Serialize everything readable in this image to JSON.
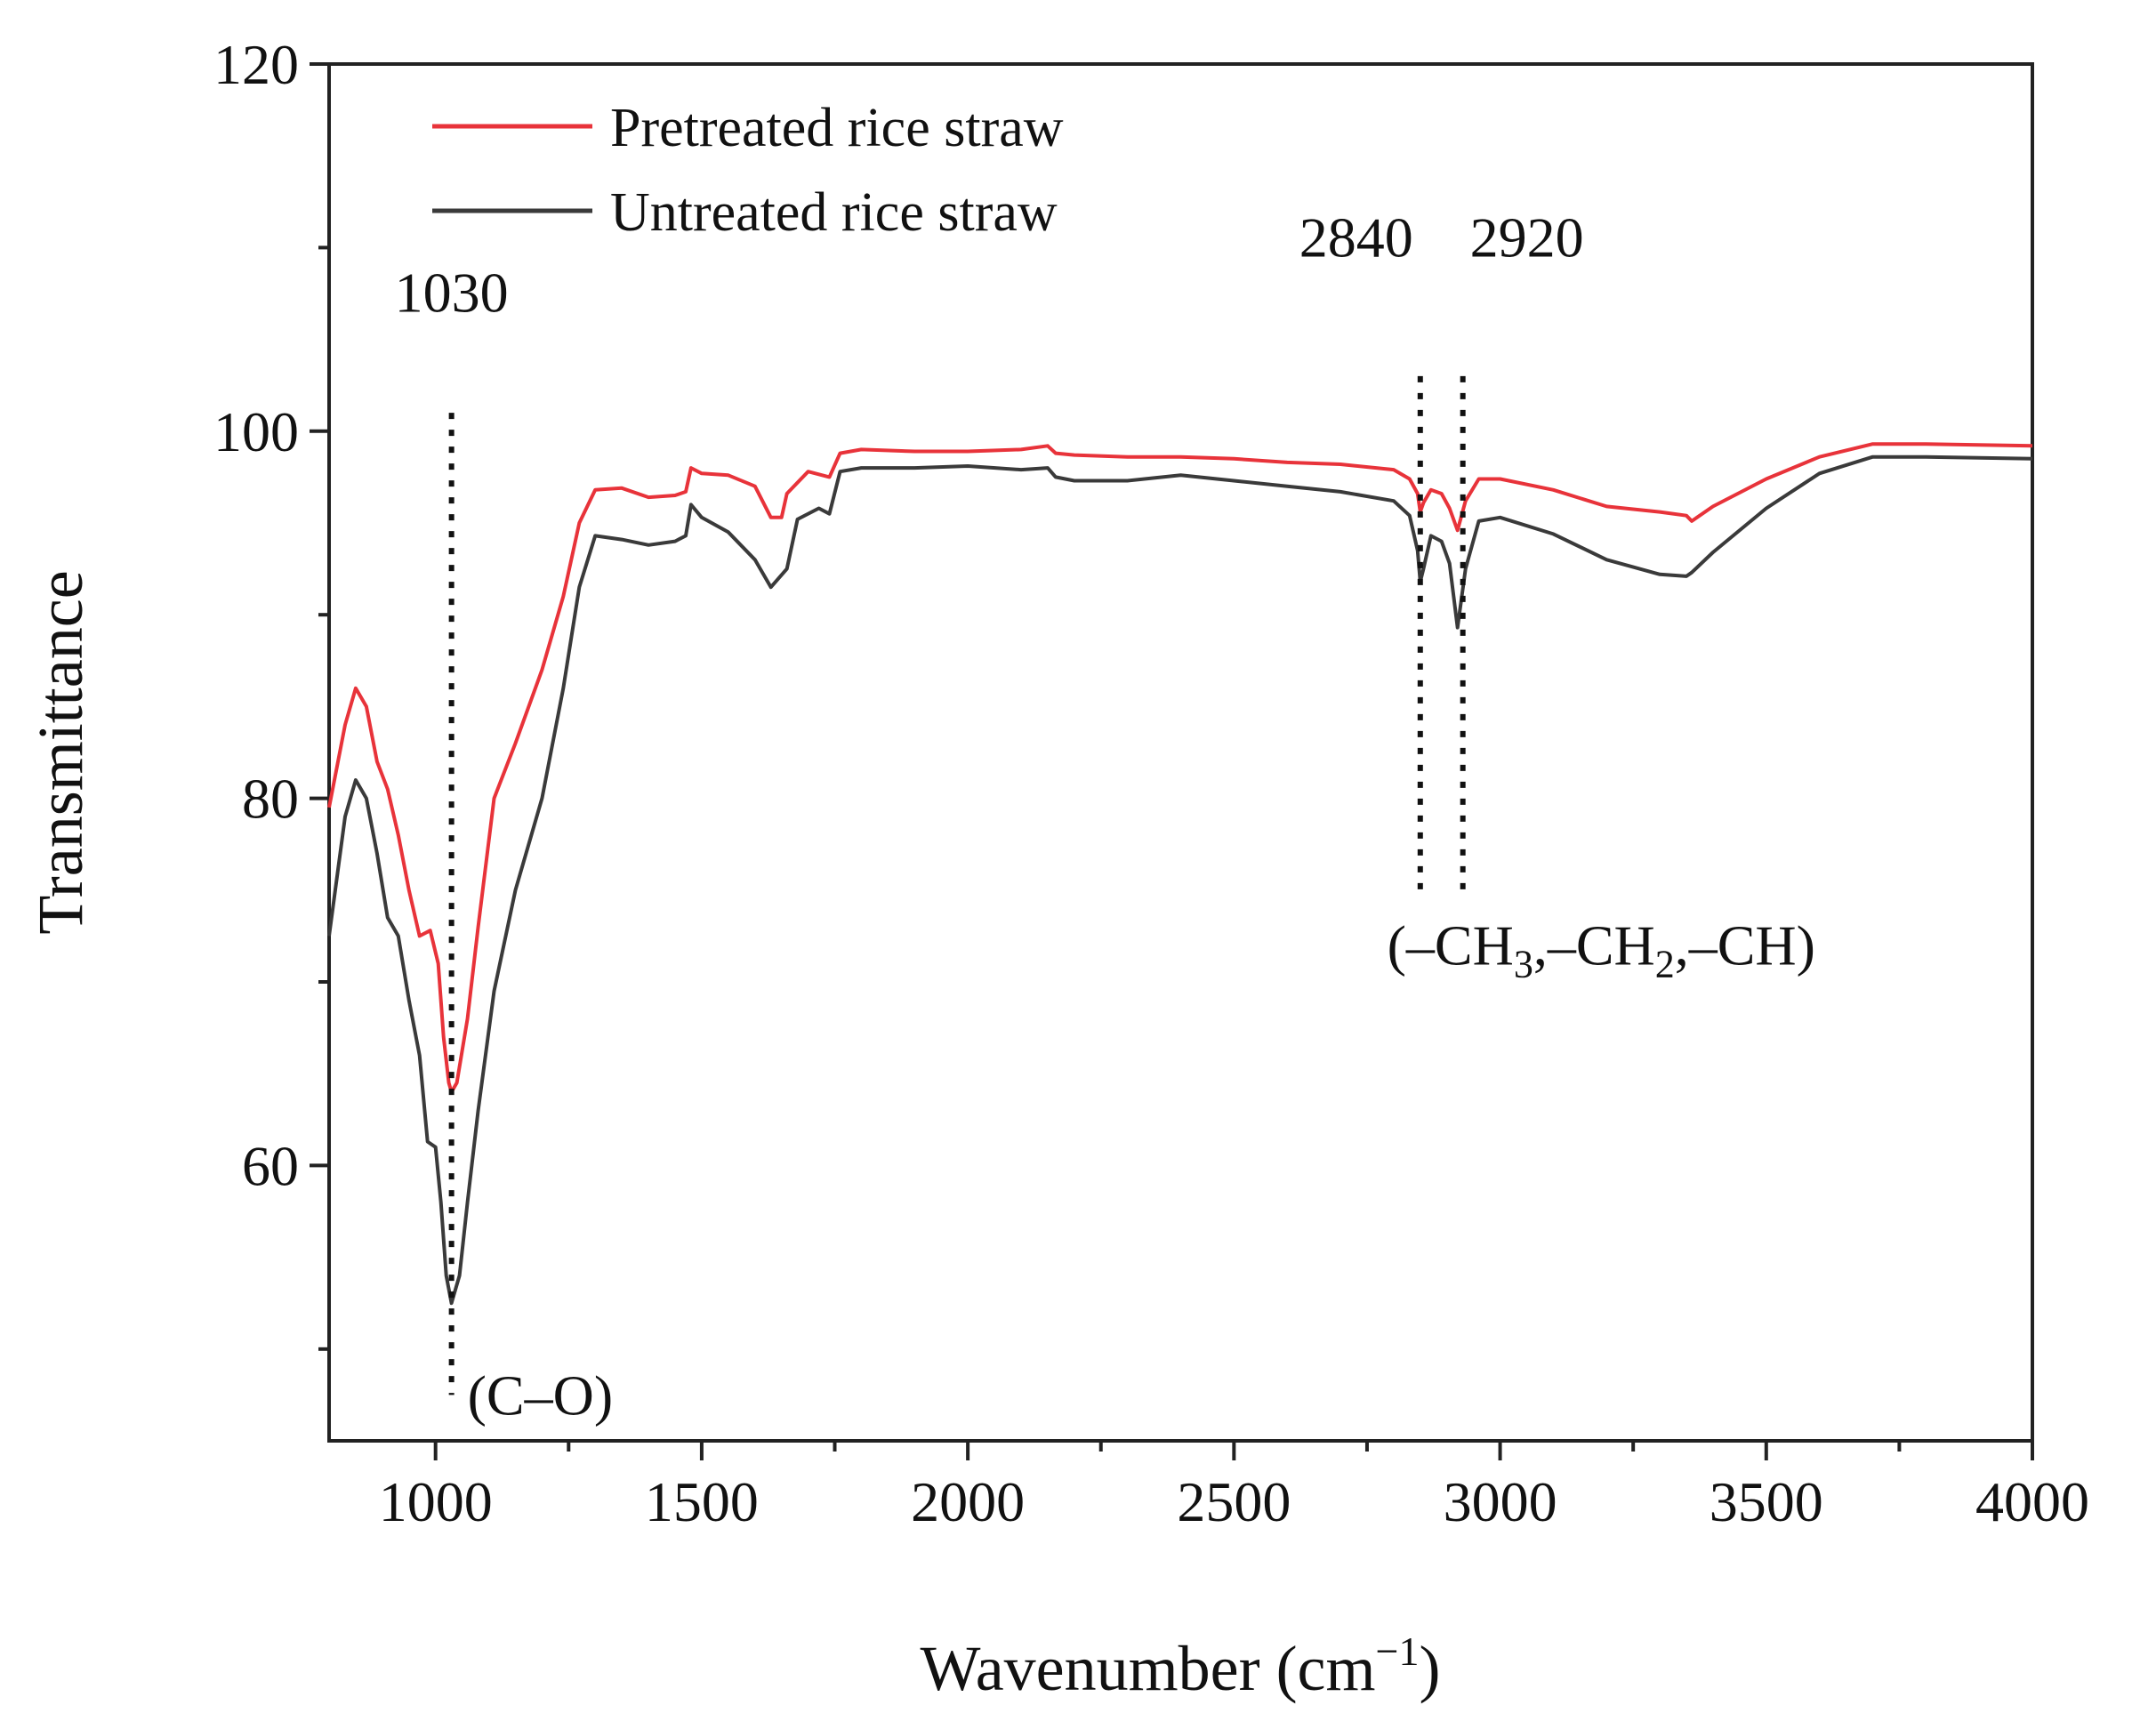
{
  "chart_data": {
    "type": "line",
    "title": "",
    "xlabel": "Wavenumber (cm",
    "xlabel_unit_exp": "−1",
    "xlabel_close": ")",
    "ylabel": "Transmittance",
    "xlim": [
      800,
      4000
    ],
    "ylim": [
      45,
      120
    ],
    "x_ticks": [
      1000,
      1500,
      2000,
      2500,
      3000,
      3500,
      4000
    ],
    "x_tick_labels": [
      "1000",
      "1500",
      "2000",
      "2500",
      "3000",
      "3500",
      "4000"
    ],
    "y_ticks": [
      60,
      80,
      100,
      120
    ],
    "y_tick_labels": [
      "60",
      "80",
      "100",
      "120"
    ],
    "legend_position": "top-left",
    "series": [
      {
        "name": "Pretreated rice straw",
        "color": "#e8333a",
        "points": [
          [
            800,
            79.5
          ],
          [
            830,
            84
          ],
          [
            850,
            86
          ],
          [
            870,
            85
          ],
          [
            890,
            82
          ],
          [
            910,
            80.5
          ],
          [
            930,
            78
          ],
          [
            950,
            75
          ],
          [
            970,
            72.5
          ],
          [
            990,
            72.8
          ],
          [
            1005,
            71
          ],
          [
            1015,
            67
          ],
          [
            1025,
            64.5
          ],
          [
            1030,
            64
          ],
          [
            1040,
            64.5
          ],
          [
            1060,
            68
          ],
          [
            1080,
            73
          ],
          [
            1110,
            80
          ],
          [
            1150,
            83
          ],
          [
            1200,
            87
          ],
          [
            1240,
            91
          ],
          [
            1270,
            95
          ],
          [
            1300,
            96.8
          ],
          [
            1350,
            96.9
          ],
          [
            1400,
            96.4
          ],
          [
            1450,
            96.5
          ],
          [
            1470,
            96.7
          ],
          [
            1480,
            98
          ],
          [
            1500,
            97.7
          ],
          [
            1550,
            97.6
          ],
          [
            1600,
            97
          ],
          [
            1630,
            95.3
          ],
          [
            1650,
            95.3
          ],
          [
            1660,
            96.6
          ],
          [
            1700,
            97.8
          ],
          [
            1740,
            97.5
          ],
          [
            1760,
            98.8
          ],
          [
            1800,
            99
          ],
          [
            1900,
            98.9
          ],
          [
            2000,
            98.9
          ],
          [
            2100,
            99
          ],
          [
            2150,
            99.2
          ],
          [
            2165,
            98.8
          ],
          [
            2200,
            98.7
          ],
          [
            2300,
            98.6
          ],
          [
            2400,
            98.6
          ],
          [
            2500,
            98.5
          ],
          [
            2600,
            98.3
          ],
          [
            2700,
            98.2
          ],
          [
            2800,
            97.9
          ],
          [
            2830,
            97.4
          ],
          [
            2845,
            96.6
          ],
          [
            2850,
            95.6
          ],
          [
            2856,
            96.1
          ],
          [
            2870,
            96.8
          ],
          [
            2890,
            96.6
          ],
          [
            2905,
            95.8
          ],
          [
            2920,
            94.6
          ],
          [
            2935,
            96.2
          ],
          [
            2960,
            97.4
          ],
          [
            3000,
            97.4
          ],
          [
            3100,
            96.8
          ],
          [
            3200,
            95.9
          ],
          [
            3300,
            95.6
          ],
          [
            3350,
            95.4
          ],
          [
            3360,
            95.1
          ],
          [
            3400,
            95.9
          ],
          [
            3500,
            97.4
          ],
          [
            3600,
            98.6
          ],
          [
            3700,
            99.3
          ],
          [
            3800,
            99.3
          ],
          [
            4000,
            99.2
          ]
        ]
      },
      {
        "name": "Untreated rice straw",
        "color": "#3a3a3a",
        "points": [
          [
            800,
            72.5
          ],
          [
            830,
            79
          ],
          [
            850,
            81
          ],
          [
            870,
            80
          ],
          [
            890,
            77
          ],
          [
            910,
            73.5
          ],
          [
            930,
            72.5
          ],
          [
            950,
            69
          ],
          [
            970,
            66
          ],
          [
            985,
            61.3
          ],
          [
            1000,
            61
          ],
          [
            1010,
            58
          ],
          [
            1020,
            54
          ],
          [
            1030,
            52.5
          ],
          [
            1045,
            54
          ],
          [
            1060,
            58
          ],
          [
            1080,
            63
          ],
          [
            1110,
            69.5
          ],
          [
            1150,
            75
          ],
          [
            1200,
            80
          ],
          [
            1240,
            86
          ],
          [
            1270,
            91.5
          ],
          [
            1300,
            94.3
          ],
          [
            1350,
            94.1
          ],
          [
            1400,
            93.8
          ],
          [
            1450,
            94
          ],
          [
            1470,
            94.3
          ],
          [
            1480,
            96
          ],
          [
            1500,
            95.3
          ],
          [
            1550,
            94.5
          ],
          [
            1600,
            93
          ],
          [
            1630,
            91.5
          ],
          [
            1660,
            92.5
          ],
          [
            1680,
            95.2
          ],
          [
            1720,
            95.8
          ],
          [
            1740,
            95.5
          ],
          [
            1760,
            97.8
          ],
          [
            1800,
            98
          ],
          [
            1900,
            98
          ],
          [
            2000,
            98.1
          ],
          [
            2100,
            97.9
          ],
          [
            2150,
            98
          ],
          [
            2165,
            97.5
          ],
          [
            2200,
            97.3
          ],
          [
            2300,
            97.3
          ],
          [
            2400,
            97.6
          ],
          [
            2500,
            97.3
          ],
          [
            2600,
            97
          ],
          [
            2700,
            96.7
          ],
          [
            2800,
            96.2
          ],
          [
            2830,
            95.4
          ],
          [
            2845,
            93.5
          ],
          [
            2850,
            91.8
          ],
          [
            2856,
            92.5
          ],
          [
            2870,
            94.3
          ],
          [
            2890,
            94
          ],
          [
            2905,
            92.8
          ],
          [
            2920,
            89.3
          ],
          [
            2935,
            92.5
          ],
          [
            2960,
            95.1
          ],
          [
            3000,
            95.3
          ],
          [
            3100,
            94.4
          ],
          [
            3200,
            93
          ],
          [
            3300,
            92.2
          ],
          [
            3350,
            92.1
          ],
          [
            3360,
            92.3
          ],
          [
            3400,
            93.4
          ],
          [
            3500,
            95.8
          ],
          [
            3600,
            97.7
          ],
          [
            3700,
            98.6
          ],
          [
            3800,
            98.6
          ],
          [
            4000,
            98.5
          ]
        ]
      }
    ],
    "annotations": [
      {
        "x": 1030,
        "y_from": 101,
        "y_to": 47.5,
        "label": "1030",
        "label_y": 106.5,
        "align": "middle"
      },
      {
        "x": 2850,
        "y_from": 103,
        "y_to": 74.5,
        "label": "2840",
        "label_y": 109.5,
        "align": "end"
      },
      {
        "x": 2930,
        "y_from": 103,
        "y_to": 74.5,
        "label": "2920",
        "label_y": 109.5,
        "align": "start"
      }
    ],
    "group_labels": [
      {
        "x": 1060,
        "y": 47.5,
        "text": "(C–O)"
      },
      {
        "x": 3190,
        "y": 72,
        "text_parts": [
          "(–CH",
          "3",
          ",–CH",
          "2",
          ",–CH)"
        ]
      }
    ]
  }
}
